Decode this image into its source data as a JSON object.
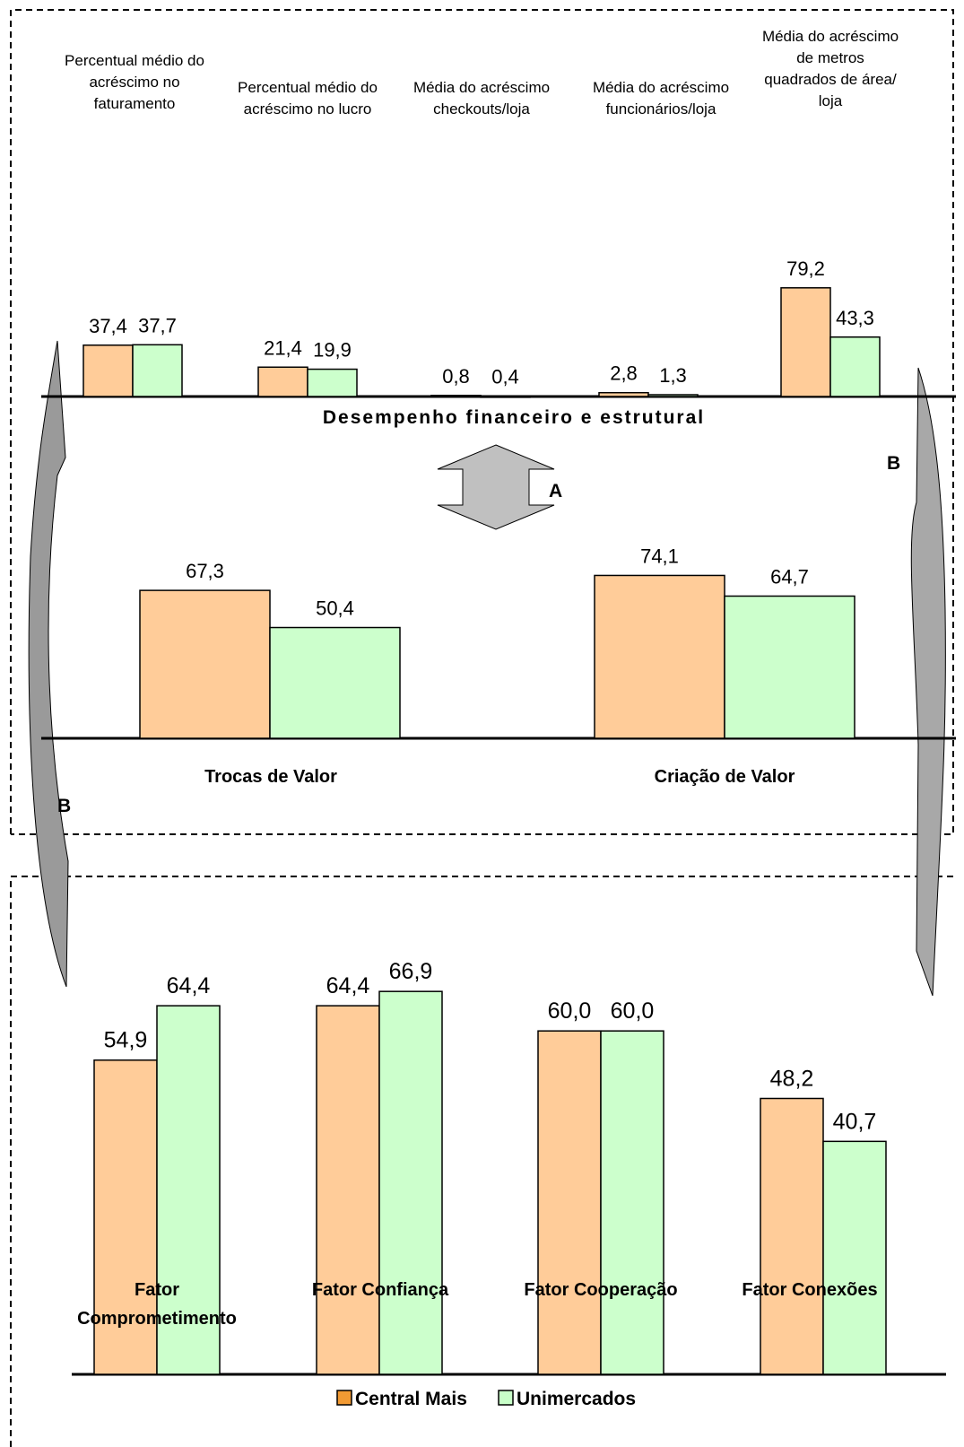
{
  "chart_data": [
    {
      "type": "bar",
      "title": "Desempenho financeiro e estrutural",
      "categories": [
        "Percentual médio do acréscimo no faturamento",
        "Percentual médio do acréscimo no lucro",
        "Média do acréscimo checkouts/loja",
        "Média do acréscimo funcionários/loja",
        "Média do acréscimo de metros quadrados de área/ loja"
      ],
      "category_lines": [
        [
          "Percentual médio do",
          "acréscimo no",
          "faturamento"
        ],
        [
          "Percentual médio do",
          "acréscimo no lucro"
        ],
        [
          "Média do acréscimo",
          "checkouts/loja"
        ],
        [
          "Média do acréscimo",
          "funcionários/loja"
        ],
        [
          "Média do acréscimo",
          "de metros",
          "quadrados de área/",
          "loja"
        ]
      ],
      "series": [
        {
          "name": "Central Mais",
          "values": [
            37.4,
            21.4,
            0.8,
            2.8,
            79.2
          ],
          "labels": [
            "37,4",
            "21,4",
            "0,8",
            "2,8",
            "79,2"
          ]
        },
        {
          "name": "Unimercados",
          "values": [
            37.7,
            19.9,
            0.4,
            1.3,
            43.3
          ],
          "labels": [
            "37,7",
            "19,9",
            "0,4",
            "1,3",
            "43,3"
          ]
        }
      ]
    },
    {
      "type": "bar",
      "categories": [
        "Trocas de Valor",
        "Criação de Valor"
      ],
      "series": [
        {
          "name": "Central Mais",
          "values": [
            67.3,
            74.1
          ],
          "labels": [
            "67,3",
            "74,1"
          ]
        },
        {
          "name": "Unimercados",
          "values": [
            50.4,
            64.7
          ],
          "labels": [
            "50,4",
            "64,7"
          ]
        }
      ]
    },
    {
      "type": "bar",
      "categories": [
        "Fator Comprometimento",
        "Fator Confiança",
        "Fator Cooperação",
        "Fator Conexões"
      ],
      "category_lines": [
        [
          "Fator",
          "Comprometimento"
        ],
        [
          "Fator Confiança"
        ],
        [
          "Fator Cooperação"
        ],
        [
          "Fator Conexões"
        ]
      ],
      "series": [
        {
          "name": "Central Mais",
          "values": [
            54.9,
            64.4,
            60.0,
            48.2
          ],
          "labels": [
            "54,9",
            "64,4",
            "60,0",
            "48,2"
          ]
        },
        {
          "name": "Unimercados",
          "values": [
            64.4,
            66.9,
            60.0,
            40.7
          ],
          "labels": [
            "64,4",
            "66,9",
            "60,0",
            "40,7"
          ]
        }
      ]
    }
  ],
  "markers": {
    "a": "A",
    "b": "B"
  },
  "legend": [
    {
      "name": "Central Mais",
      "color": "#f29a33"
    },
    {
      "name": "Unimercados",
      "color": "#c8ffc8"
    }
  ],
  "colors": {
    "central_fill": "#ffcc99",
    "unimercados_fill": "#ccffcc"
  }
}
